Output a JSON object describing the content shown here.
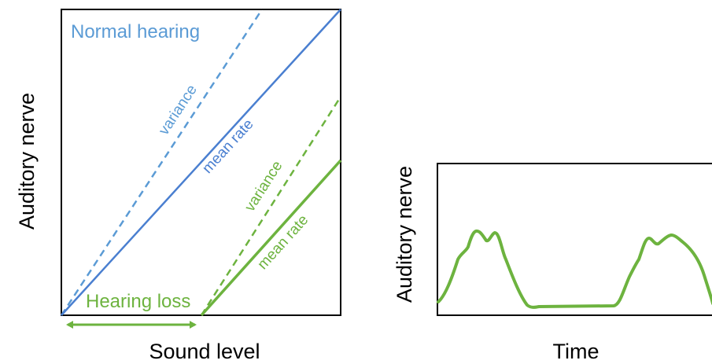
{
  "panel_left": {
    "ylabel": "Auditory nerve",
    "xlabel": "Sound level",
    "normal_label": "Normal hearing",
    "loss_label": "Hearing loss",
    "normal_variance_label": "variance",
    "normal_mean_label": "mean rate",
    "loss_variance_label": "variance",
    "loss_mean_label": "mean rate"
  },
  "panel_right": {
    "ylabel": "Auditory nerve",
    "xlabel": "Time"
  },
  "colors": {
    "normal": "#4a7fd0",
    "normal_variance": "#5b9bd5",
    "loss": "#6db33f",
    "frame": "#000000",
    "text": "#000000"
  }
}
